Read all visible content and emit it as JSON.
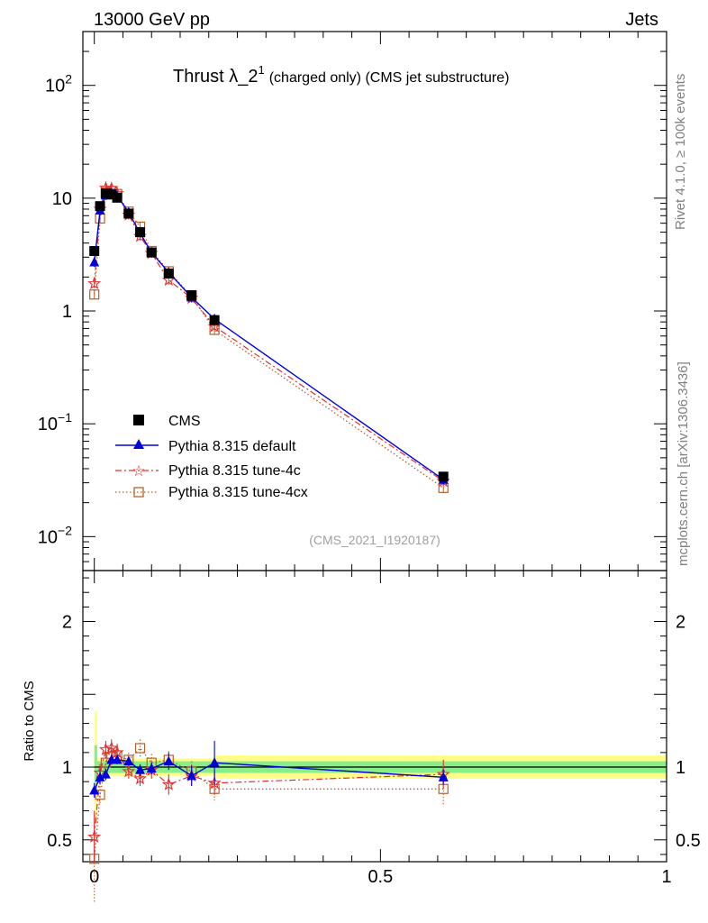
{
  "header": {
    "left": "13000 GeV pp",
    "right": "Jets"
  },
  "side_labels": {
    "rivet": "Rivet 4.1.0, ≥ 100k events",
    "mcplots": "mcplots.cern.ch [arXiv:1306.3436]"
  },
  "colors": {
    "cms": "#000000",
    "default": "#0000dd",
    "tune4c": "#e03030",
    "tune4cx": "#b8602a",
    "band_inner": "#88ee88",
    "band_outer": "#ffff88"
  },
  "chart_data": [
    {
      "type": "line",
      "panel": "main",
      "title_main": "Thrust λ_2",
      "title_sup": "1",
      "title_rest": "(charged only) (CMS jet substructure)",
      "watermark": "(CMS_2021_I1920187)",
      "xlim": [
        -0.02,
        1.0
      ],
      "ylim": [
        0.005,
        300
      ],
      "yscale": "log",
      "yticks": [
        {
          "base": "10",
          "exp": "2",
          "value": 100
        },
        {
          "text": "10",
          "value": 10
        },
        {
          "text": "1",
          "value": 1
        },
        {
          "base": "10",
          "exp": "−1",
          "value": 0.1
        },
        {
          "base": "10",
          "exp": "−2",
          "value": 0.01
        }
      ],
      "legend_position": "middle-left",
      "x": [
        0.0,
        0.01,
        0.02,
        0.03,
        0.04,
        0.06,
        0.08,
        0.1,
        0.13,
        0.17,
        0.21,
        0.61
      ],
      "series": [
        {
          "name": "CMS",
          "key": "cms",
          "values": [
            3.4,
            8.5,
            11.0,
            10.8,
            10.1,
            7.3,
            5.0,
            3.3,
            2.15,
            1.38,
            0.83,
            0.034
          ]
        },
        {
          "name": "Pythia 8.315 default",
          "key": "default",
          "values": [
            2.7,
            7.8,
            10.6,
            11.2,
            10.5,
            7.5,
            4.9,
            3.3,
            2.2,
            1.32,
            0.85,
            0.032
          ]
        },
        {
          "name": "Pythia 8.315 tune-4c",
          "key": "tune4c",
          "values": [
            1.75,
            8.0,
            12.3,
            12.2,
            11.0,
            7.1,
            4.6,
            3.25,
            1.88,
            1.3,
            0.73,
            0.031
          ]
        },
        {
          "name": "Pythia 8.315 tune-4cx",
          "key": "tune4cx",
          "values": [
            1.4,
            6.6,
            11.3,
            11.6,
            10.9,
            7.6,
            5.6,
            3.4,
            2.25,
            1.35,
            0.68,
            0.027
          ]
        }
      ]
    },
    {
      "type": "line",
      "panel": "ratio",
      "ylabel": "Ratio to CMS",
      "xlim": [
        -0.02,
        1.0
      ],
      "ylim": [
        0.35,
        2.35
      ],
      "yticks": [
        {
          "text": "0.5",
          "value": 0.5
        },
        {
          "text": "1",
          "value": 1
        },
        {
          "text": "2",
          "value": 2
        }
      ],
      "xticks": [
        {
          "text": "0",
          "value": 0
        },
        {
          "text": "0.5",
          "value": 0.5
        },
        {
          "text": "1",
          "value": 1
        }
      ],
      "x": [
        0.0,
        0.01,
        0.02,
        0.03,
        0.04,
        0.06,
        0.08,
        0.1,
        0.13,
        0.17,
        0.21,
        0.61
      ],
      "band_segments": [
        {
          "x0": 0.0,
          "x1": 0.005,
          "inner": 0.15,
          "outer": 0.38
        },
        {
          "x0": 0.005,
          "x1": 0.21,
          "inner": 0.04,
          "outer": 0.06
        },
        {
          "x0": 0.21,
          "x1": 1.0,
          "inner": 0.04,
          "outer": 0.08
        }
      ],
      "series": [
        {
          "name": "Pythia 8.315 default",
          "key": "default",
          "values": [
            0.84,
            0.93,
            0.95,
            1.05,
            1.05,
            1.04,
            0.98,
            0.99,
            1.04,
            0.94,
            1.03,
            0.93
          ],
          "errors": [
            0.05,
            0.05,
            0.04,
            0.03,
            0.03,
            0.03,
            0.04,
            0.04,
            0.06,
            0.07,
            0.15,
            0.05
          ]
        },
        {
          "name": "Pythia 8.315 tune-4c",
          "key": "tune4c",
          "values": [
            0.52,
            0.96,
            1.12,
            1.13,
            1.1,
            0.97,
            0.92,
            0.98,
            0.88,
            0.94,
            0.89,
            0.95
          ],
          "errors": [
            0.18,
            0.06,
            0.06,
            0.06,
            0.06,
            0.05,
            0.05,
            0.06,
            0.07,
            0.07,
            0.08,
            0.1
          ]
        },
        {
          "name": "Pythia 8.315 tune-4cx",
          "key": "tune4cx",
          "values": [
            0.37,
            0.81,
            1.03,
            1.07,
            1.08,
            1.05,
            1.13,
            1.03,
            1.05,
            0.97,
            0.85,
            0.85
          ],
          "errors": [
            0.3,
            0.06,
            0.06,
            0.06,
            0.06,
            0.05,
            0.06,
            0.06,
            0.06,
            0.07,
            0.08,
            0.12
          ]
        }
      ]
    }
  ]
}
